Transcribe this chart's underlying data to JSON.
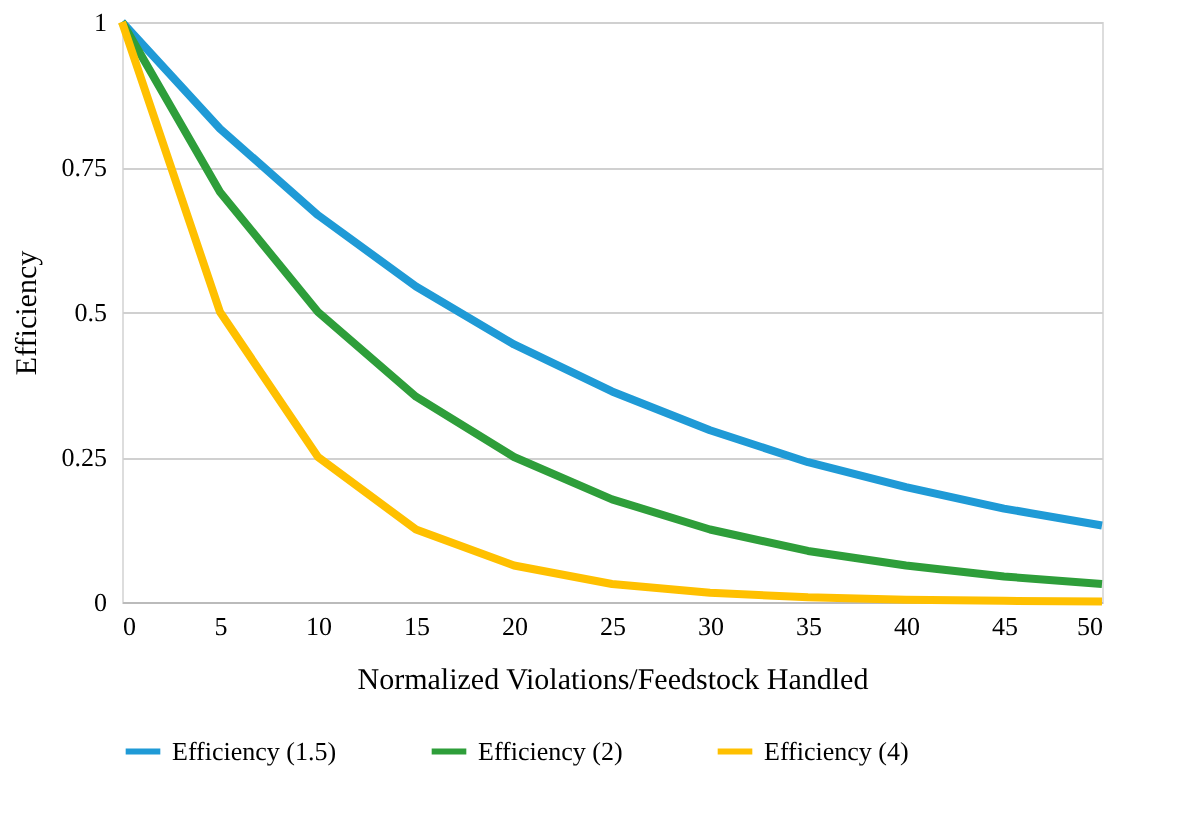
{
  "chart_data": {
    "type": "line",
    "xlabel": "Normalized Violations/Feedstock Handled",
    "ylabel": "Efficiency",
    "x": [
      0,
      5,
      10,
      15,
      20,
      25,
      30,
      35,
      40,
      45,
      50
    ],
    "series": [
      {
        "name": "Efficiency (1.5)",
        "color": "#1f9ad6",
        "values": [
          1,
          0.816,
          0.667,
          0.544,
          0.444,
          0.363,
          0.296,
          0.241,
          0.198,
          0.161,
          0.132
        ]
      },
      {
        "name": "Efficiency (2)",
        "color": "#2e9e3a",
        "values": [
          1,
          0.707,
          0.5,
          0.354,
          0.25,
          0.177,
          0.125,
          0.088,
          0.063,
          0.044,
          0.031
        ]
      },
      {
        "name": "Efficiency (4)",
        "color": "#ffc000",
        "values": [
          1,
          0.5,
          0.25,
          0.125,
          0.063,
          0.031,
          0.016,
          0.008,
          0.004,
          0.002,
          0.001
        ]
      }
    ],
    "xlim": [
      0,
      50
    ],
    "xticks": [
      0,
      5,
      10,
      15,
      20,
      25,
      30,
      35,
      40,
      45,
      50
    ],
    "ylim": [
      0,
      1
    ],
    "yticks": [
      0,
      0.25,
      0.5,
      0.75,
      1
    ],
    "grid": "y",
    "legend": "bottom",
    "marker": "none",
    "line_style": "solid"
  }
}
